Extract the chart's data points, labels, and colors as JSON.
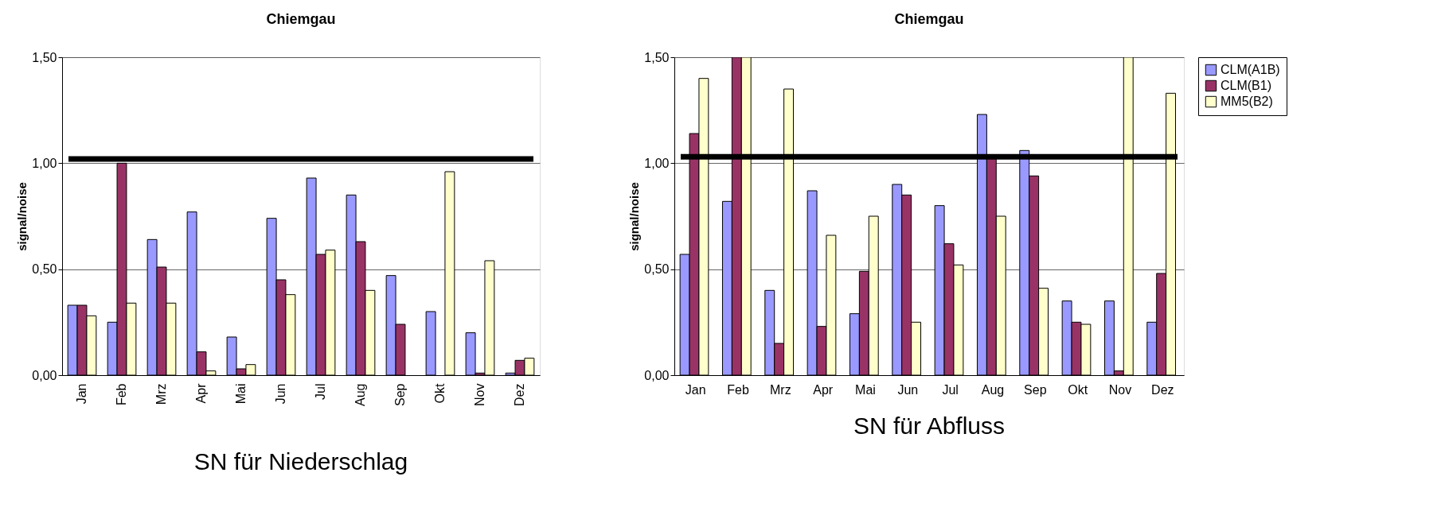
{
  "chart_data": [
    {
      "type": "bar",
      "title": "Chiemgau",
      "ylabel": "signal/noise",
      "categories": [
        "Jan",
        "Feb",
        "Mrz",
        "Apr",
        "Mai",
        "Jun",
        "Jul",
        "Aug",
        "Sep",
        "Okt",
        "Nov",
        "Dez"
      ],
      "series": [
        {
          "color": "#9999ff",
          "values": [
            0.33,
            0.25,
            0.64,
            0.77,
            0.18,
            0.74,
            0.93,
            0.85,
            0.47,
            0.3,
            0.2,
            0.01
          ]
        },
        {
          "color": "#993366",
          "values": [
            0.33,
            1.0,
            0.51,
            0.11,
            0.03,
            0.45,
            0.57,
            0.63,
            0.24,
            null,
            0.01,
            0.07
          ]
        },
        {
          "color": "#ffffcc",
          "values": [
            0.28,
            0.34,
            0.34,
            0.02,
            0.05,
            0.38,
            0.59,
            0.4,
            null,
            0.96,
            0.54,
            0.08
          ]
        }
      ],
      "ylim": [
        0,
        1.5
      ],
      "yticks": [
        {
          "value": 0,
          "label": "0,00"
        },
        {
          "value": 0.5,
          "label": "0,50"
        },
        {
          "value": 1.0,
          "label": "1,00"
        },
        {
          "value": 1.5,
          "label": "1,50"
        }
      ],
      "grid": "y",
      "ref_lines": [
        {
          "axis": "y",
          "value": 1.02,
          "color": "#000000"
        }
      ],
      "annotations": [
        "SN für Niederschlag"
      ]
    },
    {
      "type": "bar",
      "title": "Chiemgau",
      "ylabel": "signal/noise",
      "categories": [
        "Jan",
        "Feb",
        "Mrz",
        "Apr",
        "Mai",
        "Jun",
        "Jul",
        "Aug",
        "Sep",
        "Okt",
        "Nov",
        "Dez"
      ],
      "series": [
        {
          "name": "CLM(A1B)",
          "color": "#9999ff",
          "values": [
            0.57,
            0.82,
            0.4,
            0.87,
            0.29,
            0.9,
            0.8,
            1.23,
            1.06,
            0.35,
            0.35,
            0.25
          ]
        },
        {
          "name": "CLM(B1)",
          "color": "#993366",
          "values": [
            1.14,
            1.5,
            0.15,
            0.23,
            0.49,
            0.85,
            0.62,
            1.03,
            0.94,
            0.25,
            0.02,
            0.48
          ]
        },
        {
          "name": "MM5(B2)",
          "color": "#ffffcc",
          "values": [
            1.4,
            1.5,
            1.35,
            0.66,
            0.75,
            0.25,
            0.52,
            0.75,
            0.41,
            0.24,
            1.5,
            1.33
          ]
        }
      ],
      "ylim": [
        0,
        1.5
      ],
      "yticks": [
        {
          "value": 0,
          "label": "0,00"
        },
        {
          "value": 0.5,
          "label": "0,50"
        },
        {
          "value": 1.0,
          "label": "1,00"
        },
        {
          "value": 1.5,
          "label": "1,50"
        }
      ],
      "grid": "y",
      "legend": "right",
      "ref_lines": [
        {
          "axis": "y",
          "value": 1.03,
          "color": "#000000"
        }
      ],
      "annotations": [
        "SN für Abfluss"
      ]
    }
  ]
}
